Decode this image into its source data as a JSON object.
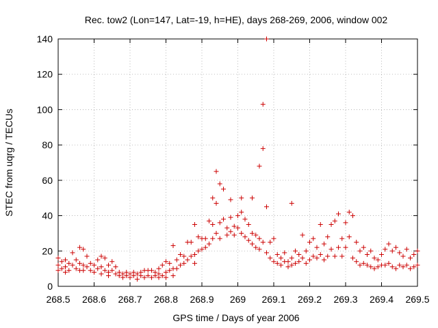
{
  "chart_data": {
    "type": "scatter",
    "title": "Rec. tow2 (Lon=147, Lat=-19, h=HE), days 268-269, 2006, window 002",
    "xlabel": "GPS time / Days of year 2006",
    "ylabel": "STEC from uqrg / TECUs",
    "xlim": [
      268.5,
      269.5
    ],
    "ylim": [
      0,
      140
    ],
    "xticks": [
      268.5,
      268.6,
      268.7,
      268.8,
      268.9,
      269.0,
      269.1,
      269.2,
      269.3,
      269.4,
      269.5
    ],
    "xtick_labels": [
      "268.5",
      "268.6",
      "268.7",
      "268.8",
      "268.9",
      "269",
      "269.1",
      "269.2",
      "269.3",
      "269.4",
      "269.5"
    ],
    "yticks": [
      0,
      20,
      40,
      60,
      80,
      100,
      120,
      140
    ],
    "ytick_labels": [
      "0",
      "20",
      "40",
      "60",
      "80",
      "100",
      "120",
      "140"
    ],
    "grid": true,
    "marker": "+",
    "color": "#cc0000",
    "series": [
      {
        "name": "STEC",
        "points": [
          [
            268.5,
            16
          ],
          [
            268.5,
            12
          ],
          [
            268.5,
            9
          ],
          [
            268.51,
            14
          ],
          [
            268.51,
            10
          ],
          [
            268.52,
            15
          ],
          [
            268.52,
            11
          ],
          [
            268.52,
            8
          ],
          [
            268.53,
            13
          ],
          [
            268.53,
            9
          ],
          [
            268.54,
            19
          ],
          [
            268.54,
            12
          ],
          [
            268.55,
            15
          ],
          [
            268.55,
            10
          ],
          [
            268.56,
            22
          ],
          [
            268.56,
            13
          ],
          [
            268.56,
            9
          ],
          [
            268.57,
            21
          ],
          [
            268.57,
            12
          ],
          [
            268.57,
            9
          ],
          [
            268.58,
            17
          ],
          [
            268.58,
            11
          ],
          [
            268.59,
            13
          ],
          [
            268.59,
            9
          ],
          [
            268.6,
            12
          ],
          [
            268.6,
            8
          ],
          [
            268.61,
            15
          ],
          [
            268.61,
            10
          ],
          [
            268.62,
            17
          ],
          [
            268.62,
            11
          ],
          [
            268.62,
            7
          ],
          [
            268.63,
            16
          ],
          [
            268.63,
            9
          ],
          [
            268.64,
            12
          ],
          [
            268.64,
            8
          ],
          [
            268.64,
            6
          ],
          [
            268.65,
            14
          ],
          [
            268.65,
            9
          ],
          [
            268.66,
            11
          ],
          [
            268.66,
            7
          ],
          [
            268.67,
            8
          ],
          [
            268.67,
            6
          ],
          [
            268.68,
            7
          ],
          [
            268.68,
            5
          ],
          [
            268.69,
            8
          ],
          [
            268.69,
            6
          ],
          [
            268.7,
            7
          ],
          [
            268.7,
            5
          ],
          [
            268.71,
            8
          ],
          [
            268.71,
            6
          ],
          [
            268.72,
            7
          ],
          [
            268.72,
            4
          ],
          [
            268.73,
            8
          ],
          [
            268.73,
            6
          ],
          [
            268.74,
            9
          ],
          [
            268.74,
            5
          ],
          [
            268.75,
            9
          ],
          [
            268.75,
            6
          ],
          [
            268.76,
            9
          ],
          [
            268.76,
            5
          ],
          [
            268.77,
            8
          ],
          [
            268.77,
            6
          ],
          [
            268.78,
            10
          ],
          [
            268.78,
            7
          ],
          [
            268.78,
            5
          ],
          [
            268.79,
            12
          ],
          [
            268.79,
            6
          ],
          [
            268.8,
            14
          ],
          [
            268.8,
            8
          ],
          [
            268.8,
            5
          ],
          [
            268.81,
            13
          ],
          [
            268.81,
            9
          ],
          [
            268.82,
            23
          ],
          [
            268.82,
            10
          ],
          [
            268.82,
            6
          ],
          [
            268.83,
            15
          ],
          [
            268.83,
            10
          ],
          [
            268.84,
            18
          ],
          [
            268.84,
            12
          ],
          [
            268.85,
            17
          ],
          [
            268.85,
            13
          ],
          [
            268.86,
            25
          ],
          [
            268.86,
            15
          ],
          [
            268.87,
            25
          ],
          [
            268.87,
            17
          ],
          [
            268.88,
            35
          ],
          [
            268.88,
            18
          ],
          [
            268.88,
            13
          ],
          [
            268.89,
            28
          ],
          [
            268.89,
            20
          ],
          [
            268.9,
            27
          ],
          [
            268.9,
            21
          ],
          [
            268.91,
            27
          ],
          [
            268.91,
            22
          ],
          [
            268.92,
            37
          ],
          [
            268.92,
            24
          ],
          [
            268.93,
            50
          ],
          [
            268.93,
            35
          ],
          [
            268.93,
            27
          ],
          [
            268.94,
            65
          ],
          [
            268.94,
            47
          ],
          [
            268.94,
            30
          ],
          [
            268.95,
            58
          ],
          [
            268.95,
            36
          ],
          [
            268.95,
            27
          ],
          [
            268.96,
            55
          ],
          [
            268.96,
            38
          ],
          [
            268.97,
            33
          ],
          [
            268.97,
            29
          ],
          [
            268.98,
            49
          ],
          [
            268.98,
            39
          ],
          [
            268.98,
            31
          ],
          [
            268.99,
            34
          ],
          [
            268.99,
            29
          ],
          [
            269.0,
            40
          ],
          [
            269.0,
            33
          ],
          [
            269.01,
            50
          ],
          [
            269.01,
            42
          ],
          [
            269.01,
            30
          ],
          [
            269.02,
            38
          ],
          [
            269.02,
            28
          ],
          [
            269.03,
            35
          ],
          [
            269.03,
            26
          ],
          [
            269.04,
            50
          ],
          [
            269.04,
            30
          ],
          [
            269.04,
            24
          ],
          [
            269.05,
            29
          ],
          [
            269.05,
            22
          ],
          [
            269.06,
            68
          ],
          [
            269.06,
            27
          ],
          [
            269.06,
            21
          ],
          [
            269.07,
            103
          ],
          [
            269.07,
            78
          ],
          [
            269.07,
            25
          ],
          [
            269.08,
            140
          ],
          [
            269.08,
            45
          ],
          [
            269.08,
            19
          ],
          [
            269.09,
            25
          ],
          [
            269.09,
            16
          ],
          [
            269.1,
            27
          ],
          [
            269.1,
            14
          ],
          [
            269.11,
            18
          ],
          [
            269.11,
            13
          ],
          [
            269.12,
            16
          ],
          [
            269.12,
            12
          ],
          [
            269.13,
            19
          ],
          [
            269.13,
            14
          ],
          [
            269.14,
            14
          ],
          [
            269.14,
            11
          ],
          [
            269.15,
            47
          ],
          [
            269.15,
            16
          ],
          [
            269.15,
            12
          ],
          [
            269.16,
            20
          ],
          [
            269.16,
            13
          ],
          [
            269.17,
            18
          ],
          [
            269.17,
            14
          ],
          [
            269.18,
            29
          ],
          [
            269.18,
            16
          ],
          [
            269.19,
            20
          ],
          [
            269.19,
            13
          ],
          [
            269.2,
            25
          ],
          [
            269.2,
            15
          ],
          [
            269.21,
            27
          ],
          [
            269.21,
            17
          ],
          [
            269.22,
            22
          ],
          [
            269.22,
            16
          ],
          [
            269.23,
            35
          ],
          [
            269.23,
            18
          ],
          [
            269.24,
            24
          ],
          [
            269.24,
            15
          ],
          [
            269.25,
            28
          ],
          [
            269.25,
            17
          ],
          [
            269.26,
            35
          ],
          [
            269.26,
            21
          ],
          [
            269.27,
            37
          ],
          [
            269.27,
            17
          ],
          [
            269.28,
            41
          ],
          [
            269.28,
            22
          ],
          [
            269.29,
            27
          ],
          [
            269.29,
            17
          ],
          [
            269.3,
            36
          ],
          [
            269.3,
            22
          ],
          [
            269.31,
            42
          ],
          [
            269.31,
            28
          ],
          [
            269.32,
            40
          ],
          [
            269.32,
            16
          ],
          [
            269.33,
            25
          ],
          [
            269.33,
            14
          ],
          [
            269.34,
            20
          ],
          [
            269.34,
            12
          ],
          [
            269.35,
            22
          ],
          [
            269.35,
            13
          ],
          [
            269.36,
            18
          ],
          [
            269.36,
            12
          ],
          [
            269.37,
            20
          ],
          [
            269.37,
            11
          ],
          [
            269.38,
            16
          ],
          [
            269.38,
            10
          ],
          [
            269.39,
            15
          ],
          [
            269.39,
            11
          ],
          [
            269.4,
            18
          ],
          [
            269.4,
            12
          ],
          [
            269.41,
            21
          ],
          [
            269.41,
            12
          ],
          [
            269.42,
            24
          ],
          [
            269.42,
            13
          ],
          [
            269.43,
            20
          ],
          [
            269.43,
            11
          ],
          [
            269.44,
            22
          ],
          [
            269.44,
            10
          ],
          [
            269.45,
            19
          ],
          [
            269.45,
            12
          ],
          [
            269.46,
            17
          ],
          [
            269.46,
            11
          ],
          [
            269.47,
            21
          ],
          [
            269.47,
            12
          ],
          [
            269.48,
            16
          ],
          [
            269.48,
            10
          ],
          [
            269.49,
            18
          ],
          [
            269.49,
            11
          ],
          [
            269.5,
            20
          ],
          [
            269.5,
            12
          ]
        ]
      }
    ]
  }
}
